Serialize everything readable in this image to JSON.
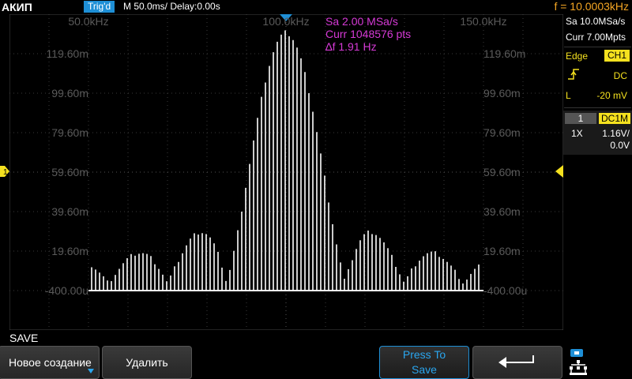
{
  "status_bar": {
    "brand": "АКИП",
    "trigger_status": "Trig'd",
    "timebase": "M 50.0ms/ Delay:0.00s",
    "frequency": "f = 10.0003kHz"
  },
  "fft_info": {
    "sample_rate": "Sa 2.00 MSa/s",
    "memory_points": "Curr 1048576 pts",
    "resolution": "∆f 1.91 Hz"
  },
  "scale_labels": {
    "freq_top": [
      "50.0kHz",
      "100.0kHz",
      "150.0kHz"
    ],
    "amp_left": [
      "119.60m",
      "99.60m",
      "79.60m",
      "59.60m",
      "39.60m",
      "19.60m",
      "-400.00u"
    ],
    "amp_right": [
      "119.60m",
      "99.60m",
      "79.60m",
      "59.60m",
      "39.60m",
      "19.60m",
      "-400.00u"
    ]
  },
  "right_panel": {
    "acq_rate": "Sa 10.0MSa/s",
    "acq_depth": "Curr 7.00Mpts",
    "trigger_type": "Edge",
    "trigger_source": "CH1",
    "trigger_coupling": "DC",
    "trigger_level_label": "L",
    "trigger_level": "-20 mV",
    "channel_number": "1",
    "channel_coupling": "DC1M",
    "probe": "1X",
    "vertical_scale": "1.16V/",
    "vertical_offset": "0.0V"
  },
  "markers": {
    "ch1_marker": "1"
  },
  "menu": {
    "title": "SAVE",
    "btn_new": "Новое создание",
    "btn_delete": "Удалить",
    "btn_press_to_save_line1": "Press To",
    "btn_press_to_save_line2": "Save"
  },
  "colors": {
    "trace": "#ffffff",
    "channel1": "#f5e11f",
    "fft_info": "#d63ad6",
    "trigger": "#1e8fd6",
    "frequency": "#f5a623"
  },
  "icons": {
    "back": "return-arrow-icon",
    "network": "network-icon",
    "trigger_edge": "rising-edge-icon"
  }
}
